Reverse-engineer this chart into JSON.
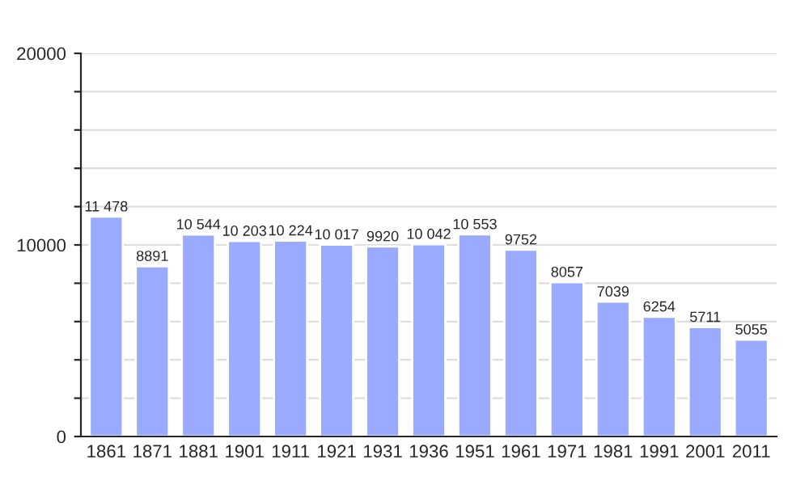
{
  "chart_data": {
    "type": "bar",
    "categories": [
      "1861",
      "1871",
      "1881",
      "1901",
      "1911",
      "1921",
      "1931",
      "1936",
      "1951",
      "1961",
      "1971",
      "1981",
      "1991",
      "2001",
      "2011"
    ],
    "values": [
      11478,
      8891,
      10544,
      10203,
      10224,
      10017,
      9920,
      10042,
      10553,
      9752,
      8057,
      7039,
      6254,
      5711,
      5055
    ],
    "value_labels": [
      "11 478",
      "8891",
      "10 544",
      "10 203",
      "10 224",
      "10 017",
      "9920",
      "10 042",
      "10 553",
      "9752",
      "8057",
      "7039",
      "6254",
      "5711",
      "5055"
    ],
    "color": "#99aaff",
    "ylim": [
      0,
      20000
    ],
    "yticks": [
      0,
      {
        "value": 2000,
        "label": null
      },
      {
        "value": 4000,
        "label": null
      },
      {
        "value": 6000,
        "label": null
      },
      {
        "value": 8000,
        "label": null
      },
      10000,
      {
        "value": 12000,
        "label": null
      },
      {
        "value": 14000,
        "label": null
      },
      {
        "value": 16000,
        "label": null
      },
      {
        "value": 18000,
        "label": null
      },
      20000
    ],
    "grid": "y"
  }
}
